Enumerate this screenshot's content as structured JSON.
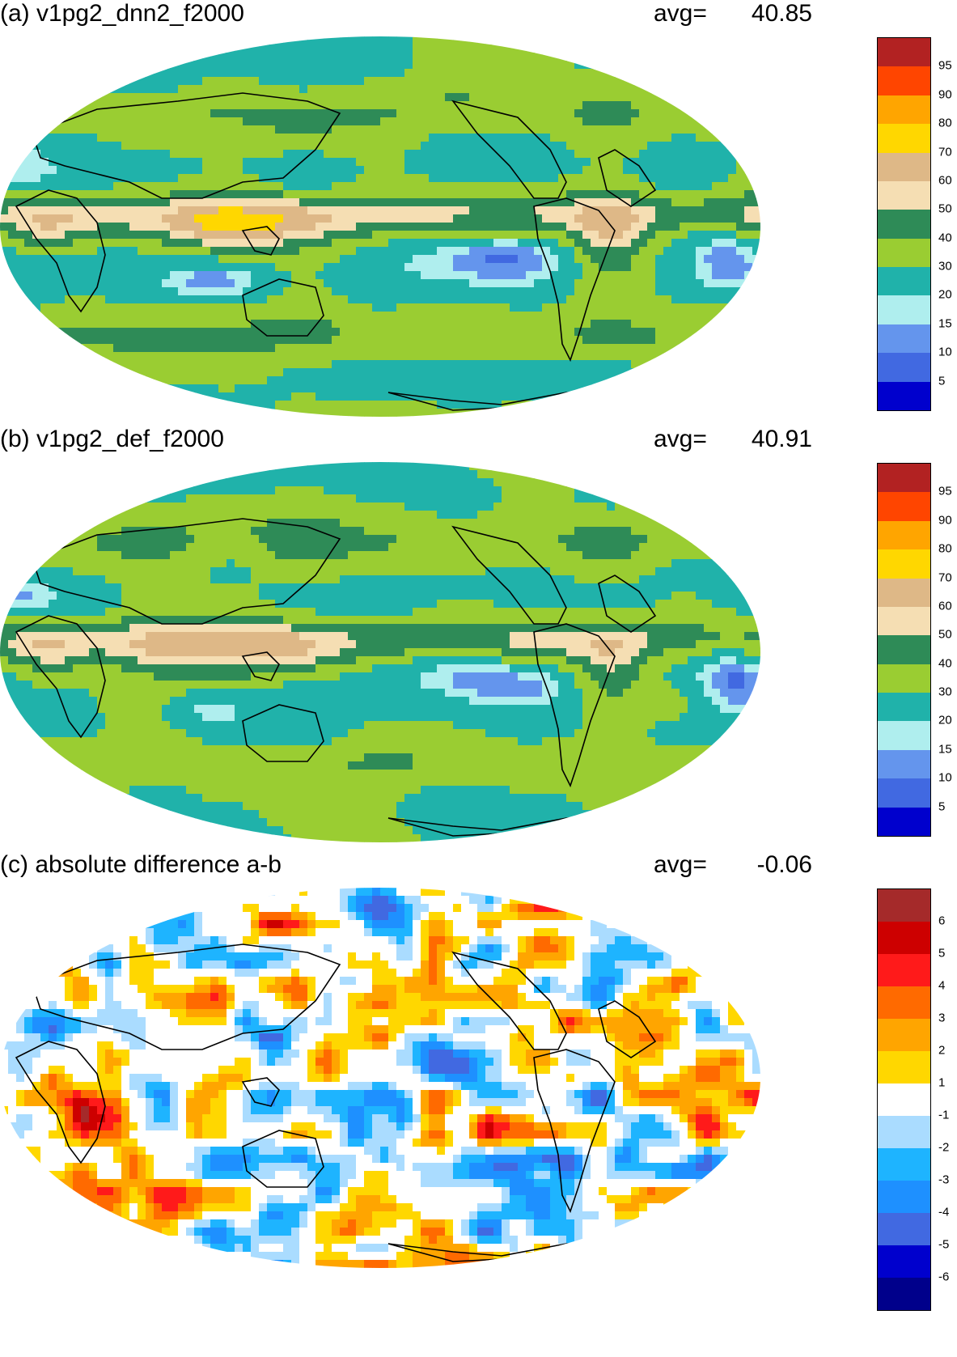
{
  "panels": [
    {
      "title": "(a) v1pg2_dnn2_f2000",
      "avg_label": "avg=",
      "avg_value": "40.85",
      "colorbar": {
        "labels": [
          "95",
          "90",
          "80",
          "70",
          "60",
          "50",
          "40",
          "30",
          "20",
          "15",
          "10",
          "5"
        ],
        "colors": [
          "#b22222",
          "#ff4500",
          "#ffa500",
          "#ffd700",
          "#deb887",
          "#f5deb3",
          "#2e8b57",
          "#9acd32",
          "#20b2aa",
          "#afeeee",
          "#6495ed",
          "#4169e1",
          "#0000cd"
        ]
      },
      "field_type": "precip"
    },
    {
      "title": "(b) v1pg2_def_f2000",
      "avg_label": "avg=",
      "avg_value": "40.91",
      "colorbar": {
        "labels": [
          "95",
          "90",
          "80",
          "70",
          "60",
          "50",
          "40",
          "30",
          "20",
          "15",
          "10",
          "5"
        ],
        "colors": [
          "#b22222",
          "#ff4500",
          "#ffa500",
          "#ffd700",
          "#deb887",
          "#f5deb3",
          "#2e8b57",
          "#9acd32",
          "#20b2aa",
          "#afeeee",
          "#6495ed",
          "#4169e1",
          "#0000cd"
        ]
      },
      "field_type": "precip"
    },
    {
      "title": "(c) absolute difference a-b",
      "avg_label": "avg=",
      "avg_value": "-0.06",
      "colorbar": {
        "labels": [
          "6",
          "5",
          "4",
          "3",
          "2",
          "1",
          "-1",
          "-2",
          "-3",
          "-4",
          "-5",
          "-6"
        ],
        "colors": [
          "#a52a2a",
          "#cd0000",
          "#ff1a1a",
          "#ff6a00",
          "#ffa500",
          "#ffd700",
          "#ffffff",
          "#aadcff",
          "#1eb4ff",
          "#1e90ff",
          "#4169e1",
          "#0000cd",
          "#00008b"
        ]
      },
      "field_type": "diff"
    }
  ]
}
